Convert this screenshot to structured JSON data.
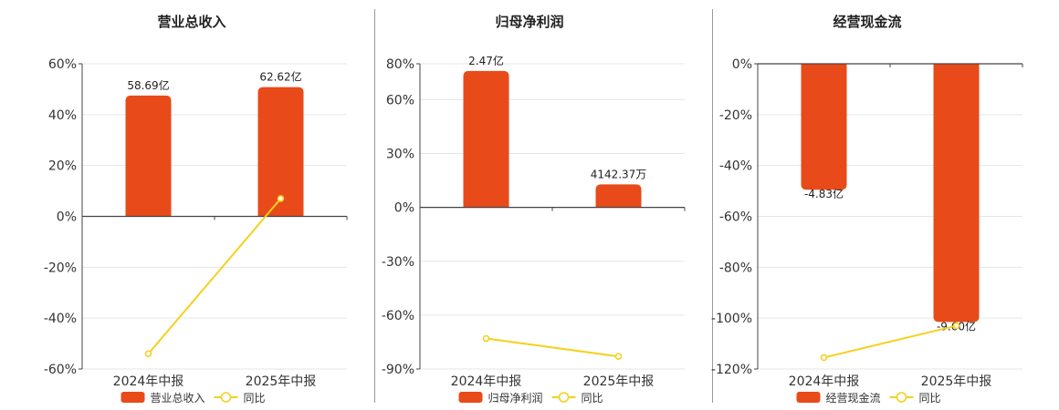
{
  "chart_data": [
    {
      "type": "bar",
      "title": "营业总收入",
      "categories": [
        "2024年中报",
        "2025年中报"
      ],
      "series": [
        {
          "name": "营业总收入",
          "type": "bar",
          "values": [
            47.5,
            50.8
          ],
          "labels": [
            "58.69亿",
            "62.62亿"
          ]
        },
        {
          "name": "同比",
          "type": "line",
          "values": [
            -54.0,
            7.0
          ]
        }
      ],
      "yticks": [
        -60,
        -40,
        -20,
        0,
        20,
        40,
        60
      ],
      "ytick_labels": [
        "-60%",
        "-40%",
        "-20%",
        "0%",
        "20%",
        "40%",
        "60%"
      ],
      "ylim": [
        -60,
        60
      ],
      "legend": "bottom",
      "grid": true
    },
    {
      "type": "bar",
      "title": "归母净利润",
      "categories": [
        "2024年中报",
        "2025年中报"
      ],
      "series": [
        {
          "name": "归母净利润",
          "type": "bar",
          "values": [
            76.0,
            12.8
          ],
          "labels": [
            "2.47亿",
            "4142.37万"
          ]
        },
        {
          "name": "同比",
          "type": "line",
          "values": [
            -73.0,
            -83.0
          ]
        }
      ],
      "yticks": [
        -90,
        -60,
        -30,
        0,
        30,
        60,
        80
      ],
      "ytick_labels": [
        "-90%",
        "-60%",
        "-30%",
        "0%",
        "30%",
        "60%",
        "80%"
      ],
      "ylim": [
        -90,
        80
      ],
      "legend": "bottom",
      "grid": true
    },
    {
      "type": "bar",
      "title": "经营现金流",
      "categories": [
        "2024年中报",
        "2025年中报"
      ],
      "series": [
        {
          "name": "经营现金流",
          "type": "bar",
          "values": [
            -49.5,
            -101.5
          ],
          "labels": [
            "-4.83亿",
            "-9.60亿"
          ]
        },
        {
          "name": "同比",
          "type": "line",
          "values": [
            -115.5,
            -103.0
          ]
        }
      ],
      "yticks": [
        -120,
        -100,
        -80,
        -60,
        -40,
        -20,
        0
      ],
      "ytick_labels": [
        "-120%",
        "-100%",
        "-80%",
        "-60%",
        "-40%",
        "-20%",
        "0%"
      ],
      "ylim": [
        -120,
        0
      ],
      "legend": "bottom",
      "grid": true
    }
  ],
  "colors": {
    "bar": "#e84a1a",
    "line": "#f5d01d",
    "grid": "#e6e6e6",
    "axis": "#444444"
  }
}
